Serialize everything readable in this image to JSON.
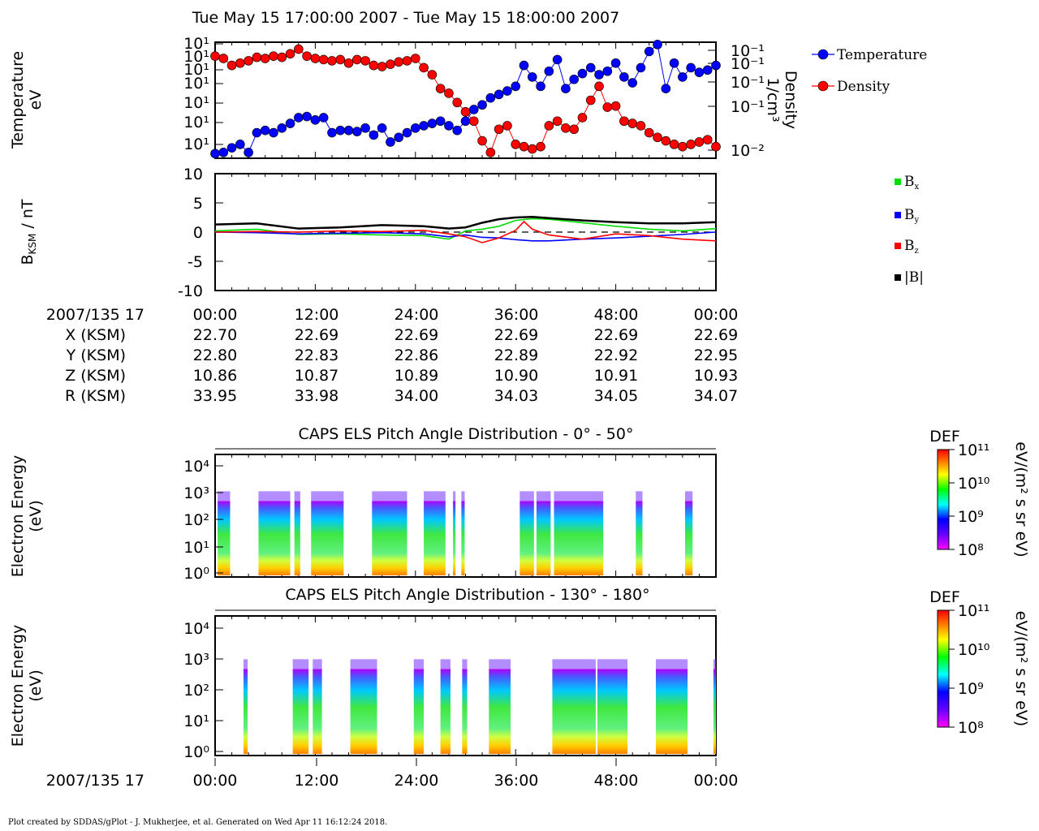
{
  "title": "Tue May 15 17:00:00 2007 - Tue May 15 18:00:00 2007",
  "footer": "Plot created by SDDAS/gPlot - J. Mukherjee, et al.  Generated on Wed Apr 11 16:12:24 2018.",
  "colors": {
    "temperature": "#0000ff",
    "density": "#ff0000",
    "bx": "#00dd00",
    "by": "#0000ff",
    "bz": "#ff0000",
    "b_mag": "#000000"
  },
  "chart_data": [
    {
      "type": "scatter",
      "panel": "plasma-moments",
      "ylabel_left": "Temperature eV",
      "ylabel_right": "Density 1/cm³",
      "left_tick_labels": [
        "10¹",
        "10¹",
        "10¹",
        "10¹",
        "10¹",
        "10¹",
        "10¹"
      ],
      "right_tick_labels": [
        "10⁻¹",
        "10⁻¹",
        "10⁻¹",
        "10⁻¹",
        "10⁻²"
      ],
      "legend": [
        "Temperature",
        "Density"
      ],
      "legend_position": "right",
      "x_range_min": [
        0,
        60
      ],
      "y_range_norm": [
        0,
        1
      ],
      "series": [
        {
          "name": "Temperature",
          "color": "#0000ff",
          "x": [
            0,
            1,
            2,
            3,
            4,
            5,
            6,
            7,
            8,
            9,
            10,
            11,
            12,
            13,
            14,
            15,
            16,
            17,
            18,
            19,
            20,
            21,
            22,
            23,
            24,
            25,
            26,
            27,
            28,
            29,
            30,
            31,
            32,
            33,
            34,
            35,
            36,
            37,
            38,
            39,
            40,
            41,
            42,
            43,
            44,
            45,
            46,
            47,
            48,
            49,
            50,
            51,
            52,
            53,
            54,
            55,
            56,
            57,
            58,
            59,
            60
          ],
          "y": [
            0.04,
            0.05,
            0.09,
            0.12,
            0.05,
            0.22,
            0.24,
            0.22,
            0.26,
            0.3,
            0.35,
            0.36,
            0.33,
            0.35,
            0.22,
            0.24,
            0.24,
            0.23,
            0.26,
            0.2,
            0.26,
            0.14,
            0.18,
            0.22,
            0.26,
            0.28,
            0.3,
            0.32,
            0.28,
            0.24,
            0.32,
            0.42,
            0.46,
            0.52,
            0.55,
            0.58,
            0.62,
            0.8,
            0.7,
            0.62,
            0.75,
            0.85,
            0.6,
            0.68,
            0.73,
            0.78,
            0.72,
            0.75,
            0.82,
            0.7,
            0.65,
            0.78,
            0.92,
            0.98,
            0.6,
            0.82,
            0.7,
            0.78,
            0.74,
            0.76,
            0.8
          ]
        },
        {
          "name": "Density",
          "color": "#ff0000",
          "x": [
            0,
            1,
            2,
            3,
            4,
            5,
            6,
            7,
            8,
            9,
            10,
            11,
            12,
            13,
            14,
            15,
            16,
            17,
            18,
            19,
            20,
            21,
            22,
            23,
            24,
            25,
            26,
            27,
            28,
            29,
            30,
            31,
            32,
            33,
            34,
            35,
            36,
            37,
            38,
            39,
            40,
            41,
            42,
            43,
            44,
            45,
            46,
            47,
            48,
            49,
            50,
            51,
            52,
            53,
            54,
            55,
            56,
            57,
            58,
            59,
            60
          ],
          "y": [
            0.88,
            0.86,
            0.8,
            0.82,
            0.84,
            0.87,
            0.86,
            0.88,
            0.87,
            0.9,
            0.94,
            0.88,
            0.86,
            0.85,
            0.84,
            0.85,
            0.82,
            0.85,
            0.84,
            0.8,
            0.79,
            0.81,
            0.83,
            0.84,
            0.86,
            0.78,
            0.72,
            0.6,
            0.56,
            0.48,
            0.4,
            0.32,
            0.15,
            0.05,
            0.25,
            0.28,
            0.12,
            0.1,
            0.08,
            0.1,
            0.28,
            0.32,
            0.26,
            0.25,
            0.35,
            0.5,
            0.62,
            0.44,
            0.45,
            0.32,
            0.3,
            0.28,
            0.22,
            0.18,
            0.15,
            0.12,
            0.1,
            0.12,
            0.14,
            0.16,
            0.1
          ]
        }
      ]
    },
    {
      "type": "line",
      "panel": "magnetic-field",
      "ylabel": "BKSM / nT",
      "ylim": [
        -10,
        10
      ],
      "y_ticks": [
        10,
        5,
        0,
        -5,
        -10
      ],
      "x_range_min": [
        0,
        60
      ],
      "legend": [
        "Bx",
        "By",
        "Bz",
        "|B|"
      ],
      "legend_position": "right",
      "series": [
        {
          "name": "Bx",
          "color": "#00dd00",
          "x": [
            0,
            5,
            10,
            15,
            20,
            25,
            28,
            30,
            32,
            34,
            36,
            38,
            40,
            44,
            48,
            52,
            56,
            60
          ],
          "y": [
            0.2,
            0.5,
            -0.4,
            -0.3,
            -0.5,
            -0.6,
            -1.2,
            0.2,
            0.5,
            1.0,
            2.0,
            2.3,
            2.2,
            1.6,
            1.0,
            0.5,
            0.2,
            0.6
          ]
        },
        {
          "name": "By",
          "color": "#0000ff",
          "x": [
            0,
            5,
            10,
            15,
            20,
            25,
            28,
            30,
            32,
            34,
            36,
            38,
            40,
            44,
            48,
            52,
            56,
            60
          ],
          "y": [
            0.0,
            -0.1,
            -0.3,
            -0.2,
            -0.1,
            -0.3,
            -0.8,
            -0.5,
            -0.9,
            -1.0,
            -1.3,
            -1.5,
            -1.5,
            -1.2,
            -1.0,
            -0.7,
            -0.4,
            0.0
          ]
        },
        {
          "name": "Bz",
          "color": "#ff0000",
          "x": [
            0,
            5,
            10,
            15,
            20,
            25,
            28,
            30,
            32,
            34,
            36,
            37,
            38,
            40,
            44,
            48,
            52,
            56,
            60
          ],
          "y": [
            0.0,
            0.1,
            0.0,
            0.2,
            0.1,
            0.3,
            -0.3,
            -0.8,
            -1.8,
            -1.0,
            0.3,
            1.8,
            0.5,
            -0.5,
            -1.2,
            -0.3,
            -0.6,
            -1.2,
            -1.5
          ]
        },
        {
          "name": "|B|",
          "color": "#000000",
          "x": [
            0,
            5,
            10,
            15,
            20,
            25,
            28,
            30,
            32,
            34,
            36,
            38,
            40,
            44,
            48,
            52,
            56,
            60
          ],
          "y": [
            1.3,
            1.5,
            0.6,
            0.8,
            1.2,
            1.0,
            0.6,
            0.8,
            1.6,
            2.2,
            2.5,
            2.6,
            2.4,
            2.0,
            1.7,
            1.5,
            1.5,
            1.7
          ]
        }
      ],
      "zero_line": "dashed"
    },
    {
      "type": "heatmap",
      "panel": "pad-0-50",
      "title": "CAPS ELS Pitch Angle Distribution - 0° - 50°",
      "ylabel": "Electron Energy (eV)",
      "y_tick_labels": [
        "10⁴",
        "10³",
        "10²",
        "10¹",
        "10⁰"
      ],
      "colorbar_title": "DEF",
      "colorbar_units": "eV/(m² s sr eV)",
      "colorbar_tick_labels": [
        "10¹¹",
        "10¹⁰",
        "10⁹",
        "10⁸"
      ],
      "x_range_min": [
        0,
        60
      ],
      "data_blocks_min": [
        [
          0.3,
          1.8
        ],
        [
          5.2,
          9.0
        ],
        [
          9.5,
          10.2
        ],
        [
          11.5,
          15.4
        ],
        [
          18.8,
          23.0
        ],
        [
          25.0,
          27.6
        ],
        [
          28.5,
          28.8
        ],
        [
          29.5,
          29.9
        ],
        [
          36.5,
          38.2
        ],
        [
          38.5,
          40.2
        ],
        [
          40.6,
          46.5
        ],
        [
          50.4,
          51.2
        ],
        [
          56.3,
          57.2
        ]
      ]
    },
    {
      "type": "heatmap",
      "panel": "pad-130-180",
      "title": "CAPS ELS Pitch Angle Distribution - 130° - 180°",
      "ylabel": "Electron Energy (eV)",
      "y_tick_labels": [
        "10⁴",
        "10³",
        "10²",
        "10¹",
        "10⁰"
      ],
      "colorbar_title": "DEF",
      "colorbar_units": "eV/(m² s sr eV)",
      "colorbar_tick_labels": [
        "10¹¹",
        "10¹⁰",
        "10⁹",
        "10⁸"
      ],
      "x_range_min": [
        0,
        60
      ],
      "data_blocks_min": [
        [
          3.4,
          3.9
        ],
        [
          9.3,
          11.2
        ],
        [
          11.7,
          12.8
        ],
        [
          16.2,
          19.4
        ],
        [
          23.8,
          25.0
        ],
        [
          27.0,
          28.2
        ],
        [
          29.6,
          30.2
        ],
        [
          32.8,
          35.4
        ],
        [
          40.4,
          45.6
        ],
        [
          45.8,
          49.4
        ],
        [
          52.8,
          56.6
        ],
        [
          59.7,
          60
        ]
      ]
    }
  ],
  "axis": {
    "x_tick_labels": [
      "00:00",
      "12:00",
      "24:00",
      "36:00",
      "48:00",
      "00:00"
    ],
    "date_label": "2007/135 17",
    "ephemeris": [
      {
        "label": "X (KSM)",
        "values": [
          "22.70",
          "22.69",
          "22.69",
          "22.69",
          "22.69",
          "22.69"
        ]
      },
      {
        "label": "Y (KSM)",
        "values": [
          "22.80",
          "22.83",
          "22.86",
          "22.89",
          "22.92",
          "22.95"
        ]
      },
      {
        "label": "Z (KSM)",
        "values": [
          "10.86",
          "10.87",
          "10.89",
          "10.90",
          "10.91",
          "10.93"
        ]
      },
      {
        "label": "R (KSM)",
        "values": [
          "33.95",
          "33.98",
          "34.00",
          "34.03",
          "34.05",
          "34.07"
        ]
      }
    ]
  }
}
